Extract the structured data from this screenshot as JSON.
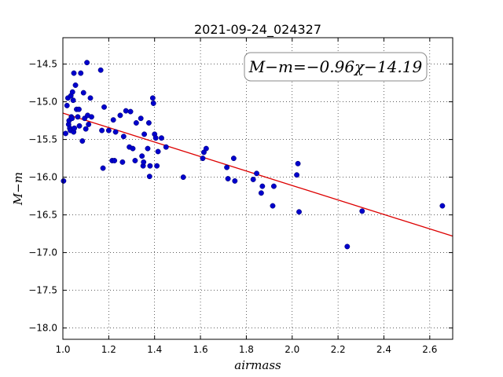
{
  "chart_data": {
    "type": "scatter",
    "title": "2021-09-24_024327",
    "xlabel": "airmass",
    "ylabel": "M−m",
    "xlim": [
      1.0,
      2.7
    ],
    "ylim": [
      -18.15,
      -14.15
    ],
    "y_inverted": true,
    "grid": true,
    "x_ticks": [
      1.0,
      1.2,
      1.4,
      1.6,
      1.8,
      2.0,
      2.2,
      2.4,
      2.6
    ],
    "x_tick_labels": [
      "1.0",
      "1.2",
      "1.4",
      "1.6",
      "1.8",
      "2.0",
      "2.2",
      "2.4",
      "2.6"
    ],
    "y_ticks": [
      -14.5,
      -15.0,
      -15.5,
      -16.0,
      -16.5,
      -17.0,
      -17.5,
      -18.0
    ],
    "y_tick_labels": [
      "−14.5",
      "−15.0",
      "−15.5",
      "−16.0",
      "−16.5",
      "−17.0",
      "−17.5",
      "−18.0"
    ],
    "annotation": "M−m=−0.96χ−14.19",
    "annotation_position": "top-right",
    "point_color": "#0000cc",
    "fit_color": "#dd0000",
    "fit_line": {
      "slope": -0.96,
      "intercept": -14.19
    },
    "points": [
      [
        1.003,
        -16.05
      ],
      [
        1.012,
        -15.42
      ],
      [
        1.018,
        -15.05
      ],
      [
        1.022,
        -14.95
      ],
      [
        1.025,
        -15.3
      ],
      [
        1.027,
        -15.25
      ],
      [
        1.03,
        -15.35
      ],
      [
        1.033,
        -15.38
      ],
      [
        1.035,
        -14.92
      ],
      [
        1.037,
        -15.2
      ],
      [
        1.04,
        -15.22
      ],
      [
        1.042,
        -14.87
      ],
      [
        1.045,
        -14.98
      ],
      [
        1.047,
        -15.4
      ],
      [
        1.05,
        -15.35
      ],
      [
        1.048,
        -14.62
      ],
      [
        1.055,
        -14.78
      ],
      [
        1.06,
        -15.1
      ],
      [
        1.065,
        -15.2
      ],
      [
        1.07,
        -15.1
      ],
      [
        1.072,
        -15.32
      ],
      [
        1.078,
        -14.62
      ],
      [
        1.085,
        -15.52
      ],
      [
        1.09,
        -14.88
      ],
      [
        1.095,
        -15.22
      ],
      [
        1.1,
        -15.36
      ],
      [
        1.105,
        -14.48
      ],
      [
        1.108,
        -15.18
      ],
      [
        1.112,
        -15.3
      ],
      [
        1.12,
        -14.95
      ],
      [
        1.125,
        -15.2
      ],
      [
        1.165,
        -14.58
      ],
      [
        1.17,
        -15.38
      ],
      [
        1.175,
        -15.88
      ],
      [
        1.18,
        -15.07
      ],
      [
        1.2,
        -15.38
      ],
      [
        1.215,
        -15.78
      ],
      [
        1.225,
        -15.78
      ],
      [
        1.22,
        -15.24
      ],
      [
        1.23,
        -15.4
      ],
      [
        1.25,
        -15.18
      ],
      [
        1.26,
        -15.8
      ],
      [
        1.265,
        -15.46
      ],
      [
        1.275,
        -15.12
      ],
      [
        1.29,
        -15.6
      ],
      [
        1.295,
        -15.13
      ],
      [
        1.305,
        -15.62
      ],
      [
        1.315,
        -15.78
      ],
      [
        1.32,
        -15.28
      ],
      [
        1.34,
        -15.22
      ],
      [
        1.345,
        -15.72
      ],
      [
        1.35,
        -15.85
      ],
      [
        1.352,
        -15.8
      ],
      [
        1.355,
        -15.43
      ],
      [
        1.37,
        -15.62
      ],
      [
        1.375,
        -15.28
      ],
      [
        1.378,
        -15.99
      ],
      [
        1.38,
        -15.85
      ],
      [
        1.392,
        -14.95
      ],
      [
        1.395,
        -15.02
      ],
      [
        1.4,
        -15.43
      ],
      [
        1.405,
        -15.48
      ],
      [
        1.41,
        -15.85
      ],
      [
        1.415,
        -15.66
      ],
      [
        1.43,
        -15.48
      ],
      [
        1.45,
        -15.6
      ],
      [
        1.525,
        -16.0
      ],
      [
        1.61,
        -15.75
      ],
      [
        1.615,
        -15.67
      ],
      [
        1.625,
        -15.62
      ],
      [
        1.715,
        -15.87
      ],
      [
        1.72,
        -16.02
      ],
      [
        1.745,
        -15.75
      ],
      [
        1.75,
        -16.05
      ],
      [
        1.83,
        -16.03
      ],
      [
        1.845,
        -15.95
      ],
      [
        1.865,
        -16.21
      ],
      [
        1.87,
        -16.12
      ],
      [
        1.915,
        -16.38
      ],
      [
        1.92,
        -16.12
      ],
      [
        2.02,
        -15.97
      ],
      [
        2.025,
        -15.82
      ],
      [
        2.03,
        -16.46
      ],
      [
        2.24,
        -16.92
      ],
      [
        2.305,
        -16.45
      ],
      [
        2.655,
        -16.38
      ]
    ]
  }
}
